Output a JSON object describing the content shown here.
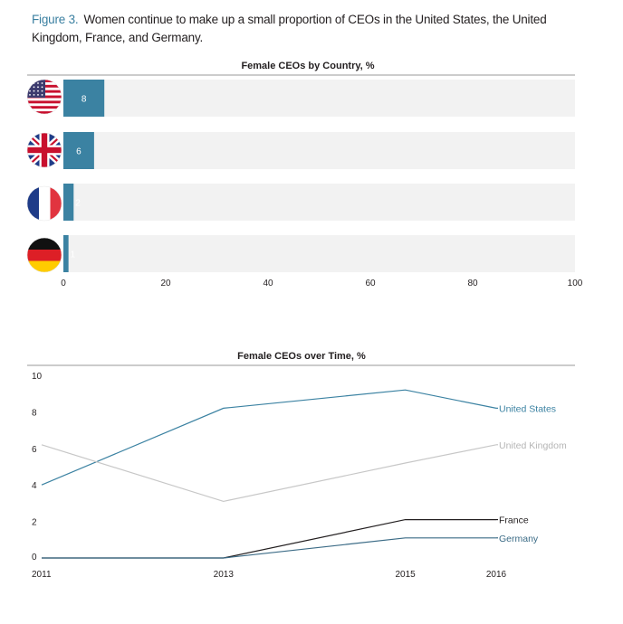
{
  "figure": {
    "label": "Figure 3.",
    "caption": "Women continue to make up a small proportion of CEOs in the United States, the United Kingdom, France, and Germany."
  },
  "colors": {
    "bar": "#3b82a2",
    "track": "#f2f2f2",
    "us_line": "#3b82a2",
    "uk_line": "#c7c7c7",
    "france_line": "#231f20",
    "germany_line": "#3b6b86",
    "rule": "#999999"
  },
  "chart_data": [
    {
      "type": "bar",
      "orientation": "horizontal",
      "title": "Female CEOs by Country, %",
      "categories": [
        "United States",
        "United Kingdom",
        "France",
        "Germany"
      ],
      "category_icons": [
        "us-flag-icon",
        "uk-flag-icon",
        "france-flag-icon",
        "germany-flag-icon"
      ],
      "values": [
        8,
        6,
        2,
        1
      ],
      "data_labels": [
        "8",
        "6",
        "2",
        "1"
      ],
      "xlim": [
        0,
        100
      ],
      "xticks": [
        0,
        20,
        40,
        60,
        80,
        100
      ],
      "grid": false
    },
    {
      "type": "line",
      "title": "Female CEOs over Time, %",
      "x": [
        2011,
        2013,
        2015,
        2016
      ],
      "ylim": [
        0,
        10
      ],
      "yticks": [
        0,
        2,
        4,
        6,
        8,
        10
      ],
      "grid": false,
      "series": [
        {
          "name": "United States",
          "values": [
            4,
            8.2,
            9.2,
            8.2
          ]
        },
        {
          "name": "United Kingdom",
          "values": [
            6.2,
            3.1,
            5.2,
            6.2
          ]
        },
        {
          "name": "France",
          "values": [
            0,
            0,
            2.1,
            2.1
          ]
        },
        {
          "name": "Germany",
          "values": [
            0,
            0,
            1.1,
            1.1
          ]
        }
      ]
    }
  ]
}
